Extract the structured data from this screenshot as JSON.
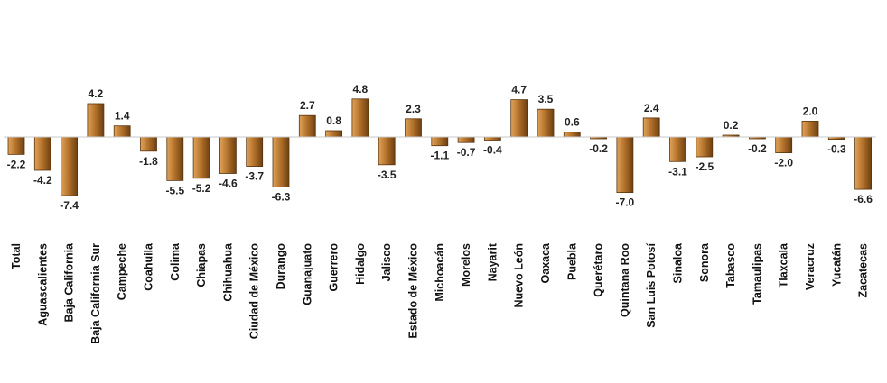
{
  "chart_data": {
    "type": "bar",
    "categories": [
      "Total",
      "Aguascalientes",
      "Baja California",
      "Baja California Sur",
      "Campeche",
      "Coahuila",
      "Colima",
      "Chiapas",
      "Chihuahua",
      "Ciudad de México",
      "Durango",
      "Guanajuato",
      "Guerrero",
      "Hidalgo",
      "Jalisco",
      "Estado de México",
      "Michoacán",
      "Morelos",
      "Nayarit",
      "Nuevo León",
      "Oaxaca",
      "Puebla",
      "Querétaro",
      "Quintana Roo",
      "San Luis Potosí",
      "Sinaloa",
      "Sonora",
      "Tabasco",
      "Tamaulipas",
      "Tlaxcala",
      "Veracruz",
      "Yucatán",
      "Zacatecas"
    ],
    "values": [
      -2.2,
      -4.2,
      -7.4,
      4.2,
      1.4,
      -1.8,
      -5.5,
      -5.2,
      -4.6,
      -3.7,
      -6.3,
      2.7,
      0.8,
      4.8,
      -3.5,
      2.3,
      -1.1,
      -0.7,
      -0.4,
      4.7,
      3.5,
      0.6,
      -0.2,
      -7.0,
      2.4,
      -3.1,
      -2.5,
      0.2,
      -0.2,
      -2.0,
      2.0,
      -0.3,
      -6.6
    ],
    "value_labels": [
      "-2.2",
      "-4.2",
      "-7.4",
      "4.2",
      "1.4",
      "-1.8",
      "-5.5",
      "-5.2",
      "-4.6",
      "-3.7",
      "-6.3",
      "2.7",
      "0.8",
      "4.8",
      "-3.5",
      "2.3",
      "-1.1",
      "-0.7",
      "-0.4",
      "4.7",
      "3.5",
      "0.6",
      "-0.2",
      "-7.0",
      "2.4",
      "-3.1",
      "-2.5",
      "0.2",
      "-0.2",
      "-2.0",
      "2.0",
      "-0.3",
      "-6.6"
    ],
    "title": "",
    "xlabel": "",
    "ylabel": "",
    "ylim": [
      -7.4,
      4.8
    ],
    "grid": false,
    "legend": "none",
    "colors": {
      "bar_light": "#e0a35a",
      "bar_main": "#b5742c",
      "bar_dark": "#6e3f10",
      "bar_stroke": "#5a3510"
    }
  }
}
